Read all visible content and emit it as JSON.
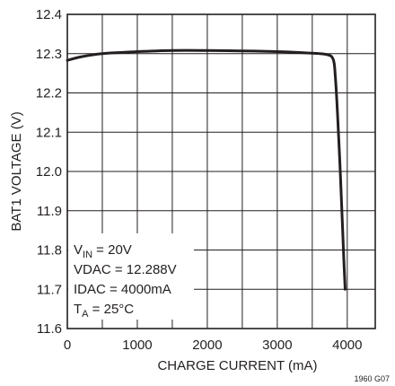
{
  "chart_data": {
    "type": "line",
    "xlabel": "CHARGE CURRENT (mA)",
    "ylabel": "BAT1 VOLTAGE (V)",
    "xlim": [
      0,
      4400
    ],
    "ylim": [
      11.6,
      12.4
    ],
    "x_ticks": [
      "0",
      "1000",
      "2000",
      "3000",
      "4000"
    ],
    "y_ticks": [
      "12.4",
      "12.3",
      "12.2",
      "12.1",
      "12.0",
      "11.9",
      "11.8",
      "11.7",
      "11.6"
    ],
    "grid": true,
    "series": [
      {
        "x": [
          0,
          200,
          500,
          1000,
          1500,
          2000,
          2500,
          3000,
          3400,
          3700,
          3800,
          3830,
          3860,
          3900,
          3930,
          3950,
          3970
        ],
        "y": [
          12.283,
          12.292,
          12.3,
          12.305,
          12.308,
          12.308,
          12.307,
          12.305,
          12.302,
          12.298,
          12.285,
          12.24,
          12.15,
          12.0,
          11.87,
          11.78,
          11.7
        ]
      }
    ],
    "annotations": [
      {
        "main": "V",
        "sub": "IN",
        "rest": " = 20V"
      },
      {
        "main": "VDAC = 12.288V",
        "sub": "",
        "rest": ""
      },
      {
        "main": "IDAC = 4000mA",
        "sub": "",
        "rest": ""
      },
      {
        "main": "T",
        "sub": "A",
        "rest": " = 25°C"
      }
    ],
    "figure_code": "1960 G07"
  }
}
